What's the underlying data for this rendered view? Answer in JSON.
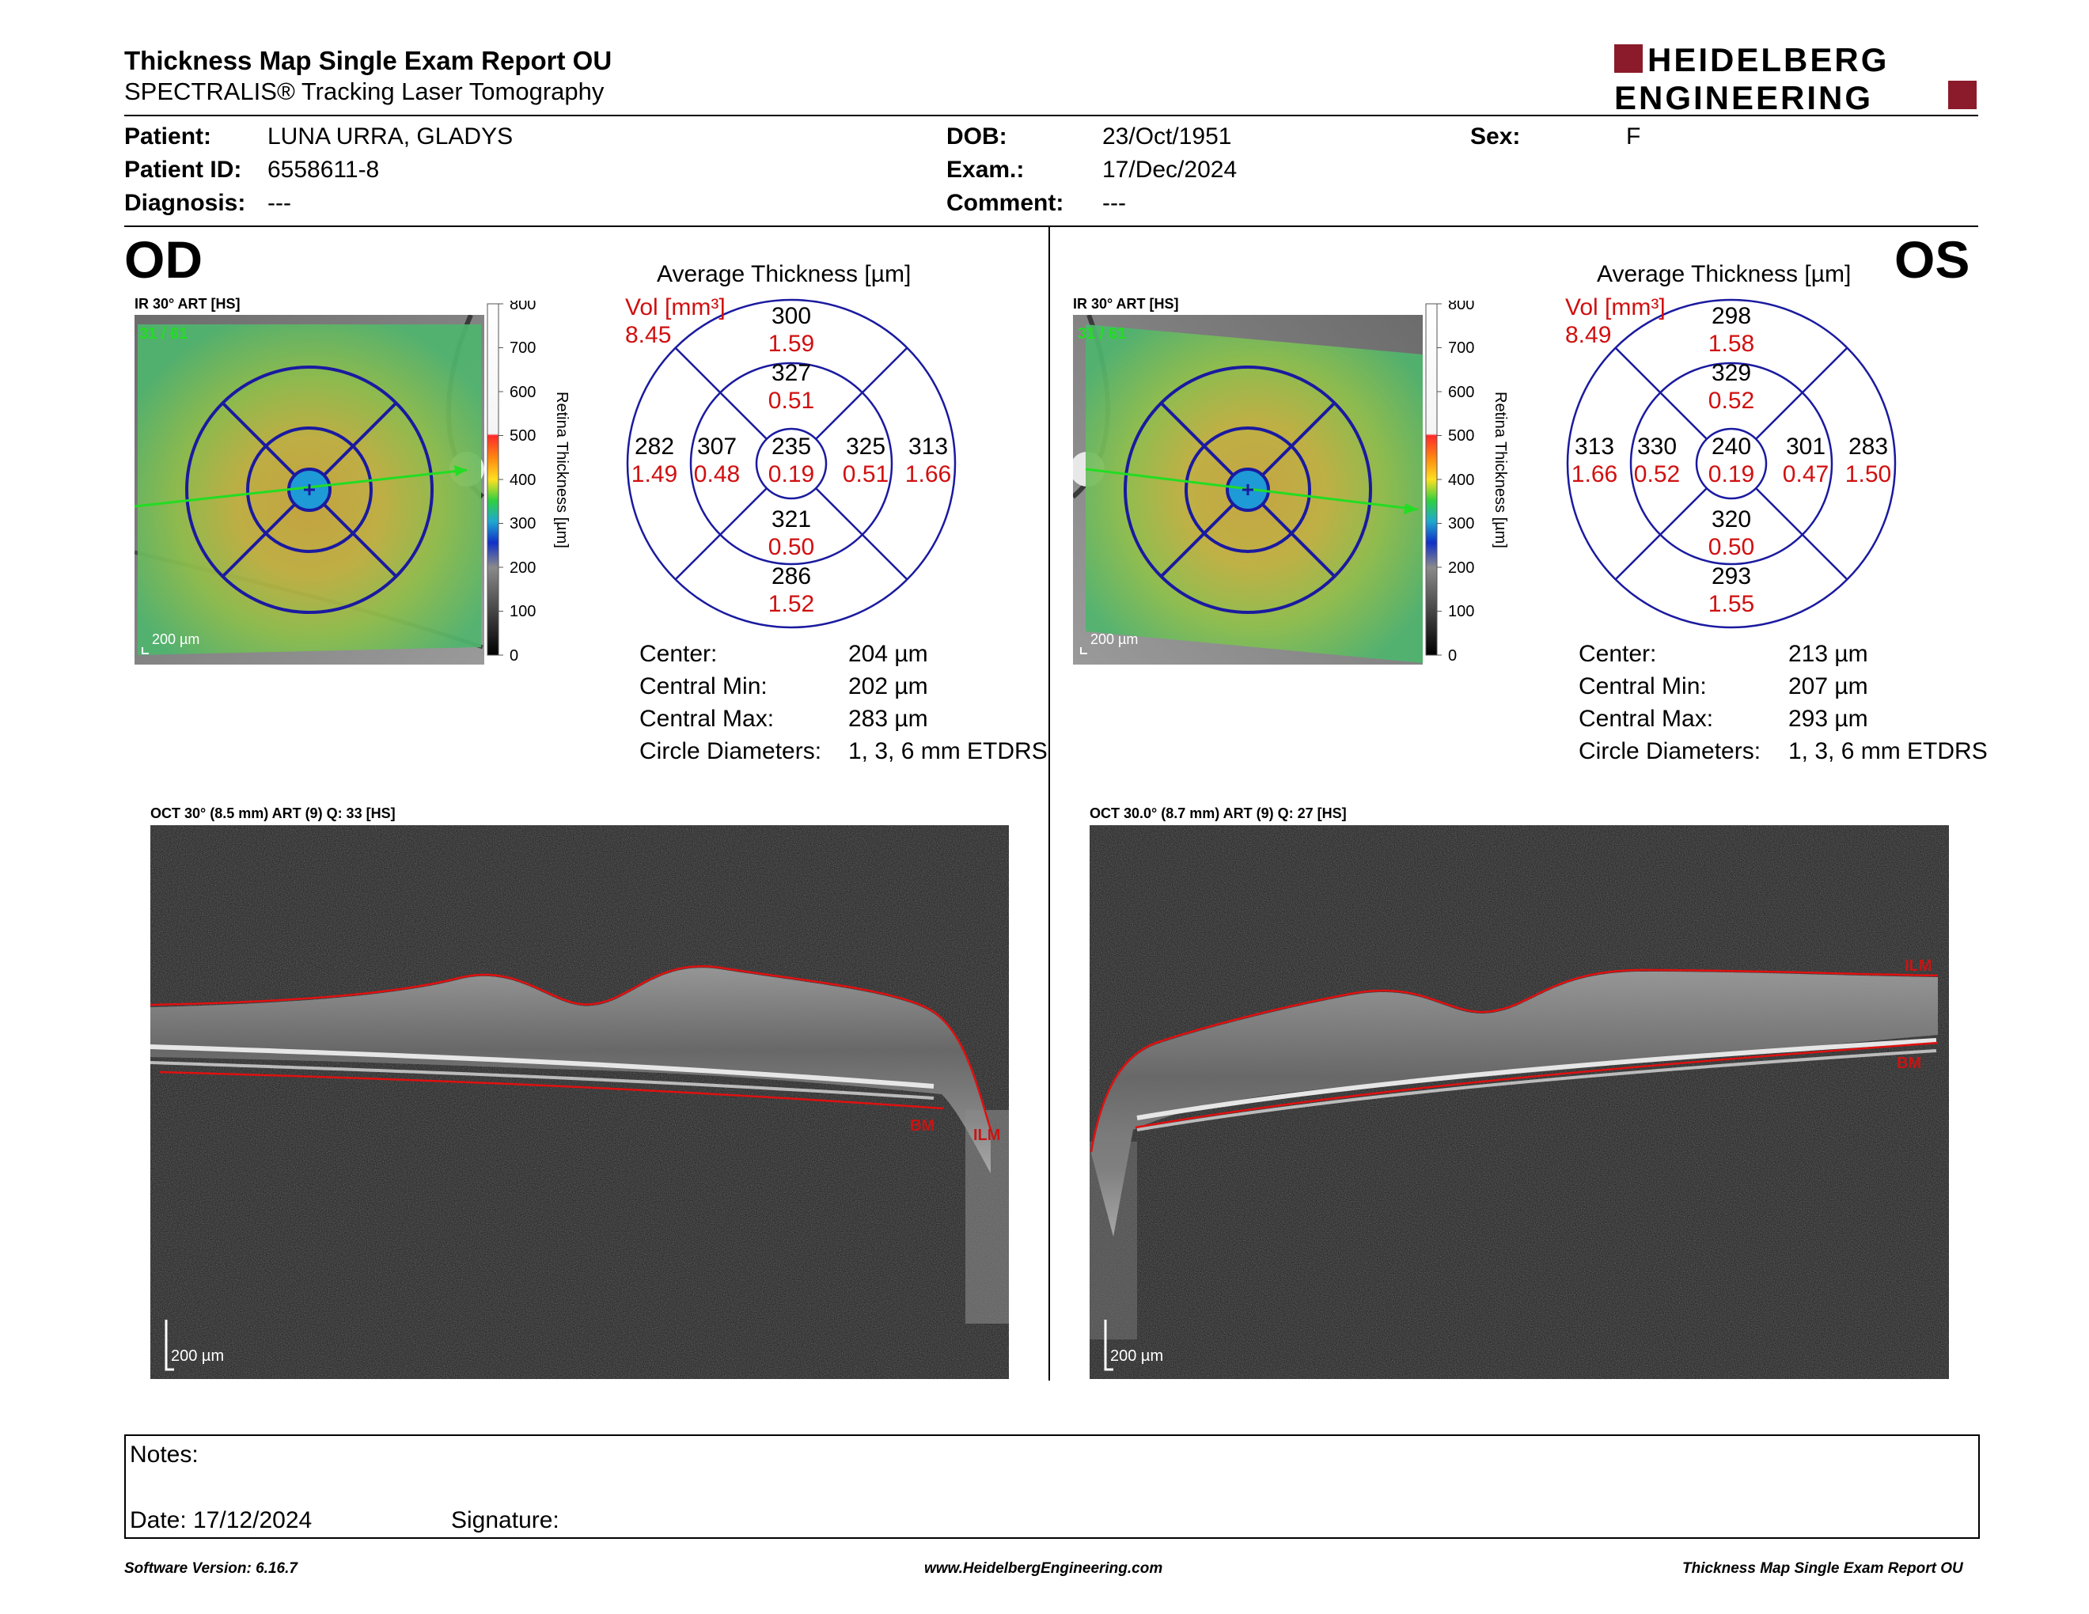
{
  "header": {
    "title": "Thickness Map Single Exam Report OU",
    "subtitle": "SPECTRALIS® Tracking Laser Tomography",
    "logo_line1": "HEIDELBERG",
    "logo_line2": "ENGINEERING",
    "brand_color": "#8b1a2b"
  },
  "patient": {
    "patient_label": "Patient:",
    "patient_value": "LUNA URRA, GLADYS",
    "id_label": "Patient ID:",
    "id_value": "6558611-8",
    "diagnosis_label": "Diagnosis:",
    "diagnosis_value": "---",
    "dob_label": "DOB:",
    "dob_value": "23/Oct/1951",
    "exam_label": "Exam.:",
    "exam_value": "17/Dec/2024",
    "comment_label": "Comment:",
    "comment_value": "---",
    "sex_label": "Sex:",
    "sex_value": "F"
  },
  "od": {
    "eye": "OD",
    "ir_label": "IR 30° ART [HS]",
    "frame": "31 / 61",
    "scale": "200 µm",
    "colorbar_ticks": [
      "800",
      "700",
      "600",
      "500",
      "400",
      "300",
      "200",
      "100",
      "0"
    ],
    "colorbar_label": "Retina Thickness [µm]",
    "avg_title": "Average Thickness [µm]",
    "vol_label": "Vol [mm³]",
    "vol_value": "8.45",
    "sectors": {
      "outer_sup": [
        "300",
        "1.59"
      ],
      "inner_sup": [
        "327",
        "0.51"
      ],
      "outer_temp": [
        "282",
        "1.49"
      ],
      "inner_temp": [
        "307",
        "0.48"
      ],
      "center": [
        "235",
        "0.19"
      ],
      "inner_nas": [
        "325",
        "0.51"
      ],
      "outer_nas": [
        "313",
        "1.66"
      ],
      "inner_inf": [
        "321",
        "0.50"
      ],
      "outer_inf": [
        "286",
        "1.52"
      ]
    },
    "stats": {
      "center_label": "Center:",
      "center_value": "204 µm",
      "min_label": "Central Min:",
      "min_value": "202 µm",
      "max_label": "Central Max:",
      "max_value": "283 µm",
      "circ_label": "Circle Diameters:",
      "circ_value": "1, 3, 6 mm ETDRS"
    },
    "oct_label": "OCT 30° (8.5 mm) ART (9) Q: 33 [HS]",
    "oct_scale": "200 µm",
    "bm_label": "BM",
    "ilm_label": "ILM"
  },
  "os": {
    "eye": "OS",
    "ir_label": "IR 30° ART [HS]",
    "frame": "31 / 61",
    "scale": "200 µm",
    "colorbar_ticks": [
      "800",
      "700",
      "600",
      "500",
      "400",
      "300",
      "200",
      "100",
      "0"
    ],
    "colorbar_label": "Retina Thickness [µm]",
    "avg_title": "Average Thickness [µm]",
    "vol_label": "Vol [mm³]",
    "vol_value": "8.49",
    "sectors": {
      "outer_sup": [
        "298",
        "1.58"
      ],
      "inner_sup": [
        "329",
        "0.52"
      ],
      "outer_temp": [
        "313",
        "1.66"
      ],
      "inner_temp": [
        "330",
        "0.52"
      ],
      "center": [
        "240",
        "0.19"
      ],
      "inner_nas": [
        "301",
        "0.47"
      ],
      "outer_nas": [
        "283",
        "1.50"
      ],
      "inner_inf": [
        "320",
        "0.50"
      ],
      "outer_inf": [
        "293",
        "1.55"
      ]
    },
    "stats": {
      "center_label": "Center:",
      "center_value": "213 µm",
      "min_label": "Central Min:",
      "min_value": "207 µm",
      "max_label": "Central Max:",
      "max_value": "293 µm",
      "circ_label": "Circle Diameters:",
      "circ_value": "1, 3, 6 mm ETDRS"
    },
    "oct_label": "OCT 30.0° (8.7 mm) ART (9) Q: 27 [HS]",
    "oct_scale": "200 µm",
    "bm_label": "BM",
    "ilm_label": "ILM"
  },
  "notes": {
    "notes_label": "Notes:",
    "date_label": "Date: 17/12/2024",
    "signature_label": "Signature:"
  },
  "footer": {
    "left": "Software Version: 6.16.7",
    "center": "www.HeidelbergEngineering.com",
    "right": "Thickness Map Single Exam Report OU"
  }
}
